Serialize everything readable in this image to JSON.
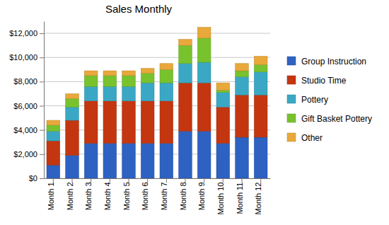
{
  "chart_data": {
    "type": "bar",
    "title": "Sales Monthly",
    "stacked": true,
    "grid": true,
    "legend": "right",
    "categories": [
      "Month 1",
      "Month 2",
      "Month 3",
      "Month 4",
      "Month 5",
      "Month 6",
      "Month 7",
      "Month 8",
      "Month 9",
      "Month 10",
      "Month 11",
      "Month 12"
    ],
    "series": [
      {
        "name": "Group Instruction",
        "color": "#2e62c2",
        "values": [
          1100,
          1900,
          2900,
          2900,
          2900,
          2900,
          2900,
          3900,
          3900,
          2900,
          3400,
          3400
        ]
      },
      {
        "name": "Studio Time",
        "color": "#c4360f",
        "values": [
          2000,
          2900,
          3500,
          3500,
          3500,
          3500,
          3500,
          4000,
          4000,
          3000,
          3500,
          3500
        ]
      },
      {
        "name": "Pottery",
        "color": "#3aa8c4",
        "values": [
          800,
          1100,
          1200,
          1200,
          1200,
          1500,
          1500,
          1600,
          1700,
          1200,
          1500,
          1900
        ]
      },
      {
        "name": "Gift Basket Pottery",
        "color": "#78c22e",
        "values": [
          500,
          700,
          900,
          900,
          900,
          800,
          1100,
          1500,
          2000,
          200,
          500,
          600
        ]
      },
      {
        "name": "Other",
        "color": "#e9a83a",
        "values": [
          400,
          400,
          400,
          400,
          400,
          400,
          500,
          500,
          900,
          600,
          600,
          700
        ]
      }
    ],
    "ylim": [
      0,
      13000
    ],
    "yticks": [
      {
        "value": 0,
        "label": "$0"
      },
      {
        "value": 2000,
        "label": "$2,000"
      },
      {
        "value": 4000,
        "label": "$4,000"
      },
      {
        "value": 6000,
        "label": "$6,000"
      },
      {
        "value": 8000,
        "label": "$8,000"
      },
      {
        "value": 10000,
        "label": "$10,000"
      },
      {
        "value": 12000,
        "label": "$12,000"
      }
    ]
  }
}
